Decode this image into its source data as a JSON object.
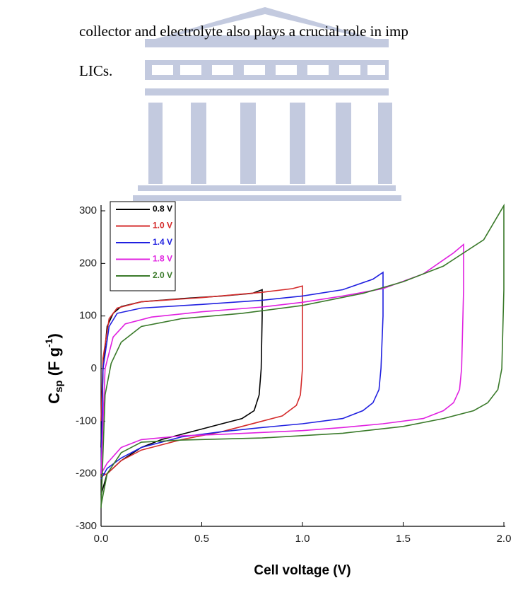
{
  "text": {
    "lines": [
      "collector and electrolyte also plays a crucial role in imp",
      "LICs."
    ]
  },
  "chart_data": {
    "type": "line",
    "xlabel": "Cell voltage (V)",
    "ylabel": [
      "C",
      "sp",
      " (F g",
      "-1",
      ")"
    ],
    "xlim": [
      0,
      2
    ],
    "ylim": [
      -300,
      300
    ],
    "xticks": [
      {
        "value": 0,
        "label": "0.0"
      },
      {
        "value": 0.5,
        "label": "0.5"
      },
      {
        "value": 1,
        "label": "1.0"
      },
      {
        "value": 1.5,
        "label": "1.5"
      },
      {
        "value": 2,
        "label": "2.0"
      }
    ],
    "yticks": [
      -300,
      -200,
      -100,
      0,
      100,
      200,
      300
    ],
    "legend": "top-left",
    "series": [
      {
        "name": "0.8 V",
        "color": "#000000",
        "x": [
          0,
          0.01,
          0.03,
          0.06,
          0.1,
          0.2,
          0.4,
          0.6,
          0.75,
          0.8,
          0.8,
          0.795,
          0.785,
          0.76,
          0.7,
          0.6,
          0.5,
          0.4,
          0.3,
          0.2,
          0.1,
          0.03,
          0
        ],
        "values": [
          -150,
          0,
          80,
          105,
          118,
          127,
          133,
          138,
          143,
          150,
          100,
          0,
          -50,
          -80,
          -95,
          -105,
          -115,
          -125,
          -135,
          -150,
          -175,
          -200,
          -240
        ]
      },
      {
        "name": "1.0 V",
        "color": "#d42a2a",
        "x": [
          0,
          0.01,
          0.04,
          0.08,
          0.2,
          0.5,
          0.8,
          0.95,
          1.0,
          1.0,
          1.0,
          0.99,
          0.97,
          0.9,
          0.8,
          0.6,
          0.4,
          0.2,
          0.1,
          0.03,
          0
        ],
        "values": [
          -100,
          20,
          95,
          115,
          127,
          135,
          145,
          152,
          157,
          100,
          0,
          -50,
          -70,
          -90,
          -100,
          -120,
          -135,
          -155,
          -175,
          -200,
          -205
        ]
      },
      {
        "name": "1.4 V",
        "color": "#2020e0",
        "x": [
          0,
          0.01,
          0.04,
          0.08,
          0.2,
          0.5,
          0.8,
          1.0,
          1.2,
          1.35,
          1.4,
          1.4,
          1.39,
          1.38,
          1.35,
          1.3,
          1.2,
          1.0,
          0.8,
          0.6,
          0.4,
          0.2,
          0.1,
          0.03,
          0
        ],
        "values": [
          -200,
          0,
          80,
          105,
          115,
          122,
          130,
          138,
          150,
          170,
          183,
          100,
          0,
          -40,
          -65,
          -80,
          -95,
          -105,
          -112,
          -120,
          -130,
          -150,
          -170,
          -190,
          -210
        ]
      },
      {
        "name": "1.8 V",
        "color": "#e020e0",
        "x": [
          0,
          0.02,
          0.06,
          0.12,
          0.25,
          0.5,
          0.8,
          1.0,
          1.2,
          1.4,
          1.6,
          1.75,
          1.8,
          1.8,
          1.79,
          1.78,
          1.75,
          1.7,
          1.6,
          1.4,
          1.2,
          1.0,
          0.6,
          0.4,
          0.2,
          0.1,
          0.03,
          0
        ],
        "values": [
          -200,
          0,
          60,
          85,
          98,
          108,
          117,
          126,
          138,
          152,
          180,
          220,
          236,
          150,
          0,
          -40,
          -65,
          -80,
          -95,
          -105,
          -112,
          -118,
          -125,
          -128,
          -135,
          -150,
          -180,
          -200
        ]
      },
      {
        "name": "2.0 V",
        "color": "#3a7a2a",
        "x": [
          0,
          0.02,
          0.05,
          0.1,
          0.2,
          0.4,
          0.7,
          1.0,
          1.3,
          1.5,
          1.7,
          1.9,
          2.0,
          2.0,
          1.99,
          1.97,
          1.92,
          1.85,
          1.7,
          1.5,
          1.2,
          0.8,
          0.4,
          0.2,
          0.1,
          0.03,
          0
        ],
        "values": [
          -265,
          -50,
          10,
          50,
          80,
          95,
          105,
          120,
          143,
          165,
          195,
          245,
          310,
          150,
          0,
          -40,
          -65,
          -80,
          -95,
          -110,
          -123,
          -132,
          -136,
          -140,
          -160,
          -200,
          -260
        ]
      }
    ]
  }
}
